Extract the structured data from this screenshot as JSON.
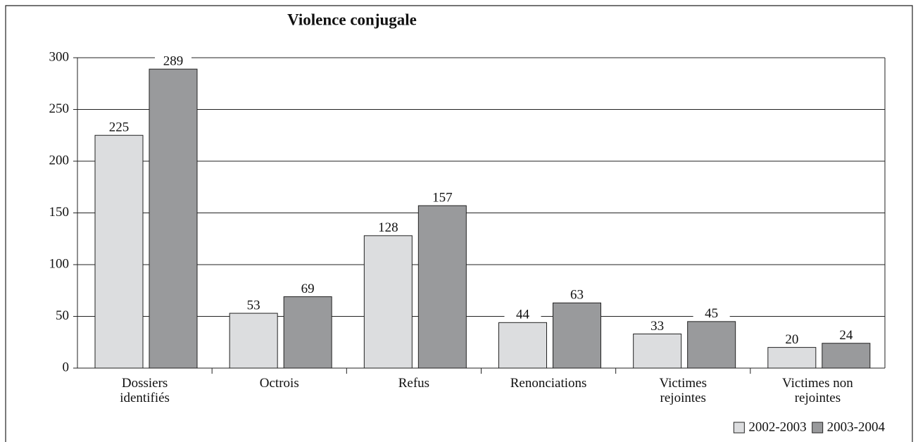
{
  "chart_data": {
    "type": "bar",
    "title": "Violence conjugale",
    "categories": [
      "Dossiers identifiés",
      "Octrois",
      "Refus",
      "Renonciations",
      "Victimes rejointes",
      "Victimes non rejointes"
    ],
    "series": [
      {
        "name": "2002-2003",
        "color": "#dcdddf",
        "values": [
          225,
          53,
          128,
          44,
          33,
          20
        ]
      },
      {
        "name": "2003-2004",
        "color": "#999a9c",
        "values": [
          289,
          69,
          157,
          63,
          45,
          24
        ]
      }
    ],
    "ylim": [
      0,
      300
    ],
    "yticks": [
      0,
      50,
      100,
      150,
      200,
      250,
      300
    ],
    "grid": true,
    "legend": "bottom-right"
  }
}
